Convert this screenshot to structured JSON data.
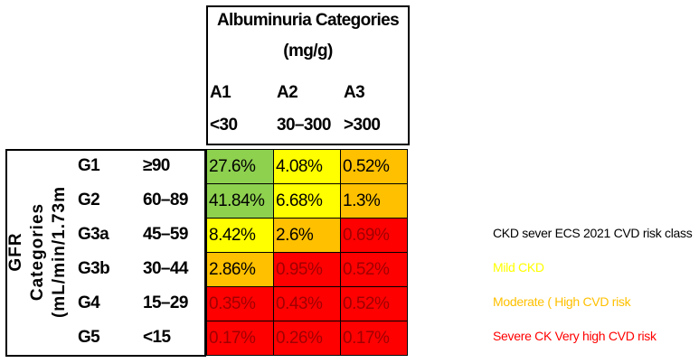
{
  "header": {
    "title": "Albuminuria Categories",
    "unit": "(mg/g)",
    "columns": [
      {
        "code": "A1",
        "range": "<30"
      },
      {
        "code": "A2",
        "range": "30–300"
      },
      {
        "code": "A3",
        "range": ">300"
      }
    ]
  },
  "row_header": {
    "lines": [
      "GFR",
      "Categories",
      "(mL/min/1.73m"
    ]
  },
  "rows": [
    {
      "code": "G1",
      "range": "≥90",
      "cells": [
        {
          "text": "27.6%",
          "color": "#8ed14f"
        },
        {
          "text": "4.08%",
          "color": "#ffff00"
        },
        {
          "text": "0.52%",
          "color": "#ffc000"
        }
      ]
    },
    {
      "code": "G2",
      "range": "60–89",
      "cells": [
        {
          "text": "41.84%",
          "color": "#8ed14f"
        },
        {
          "text": "6.68%",
          "color": "#ffff00"
        },
        {
          "text": "1.3%",
          "color": "#ffc000"
        }
      ]
    },
    {
      "code": "G3a",
      "range": "45–59",
      "cells": [
        {
          "text": "8.42%",
          "color": "#ffff00"
        },
        {
          "text": "2.6%",
          "color": "#ffc000"
        },
        {
          "text": "0.69%",
          "color": "#ff0000"
        }
      ]
    },
    {
      "code": "G3b",
      "range": "30–44",
      "cells": [
        {
          "text": "2.86%",
          "color": "#ffc000"
        },
        {
          "text": "0.95%",
          "color": "#ff0000"
        },
        {
          "text": "0.52%",
          "color": "#ff0000"
        }
      ]
    },
    {
      "code": "G4",
      "range": "15–29",
      "cells": [
        {
          "text": "0.35%",
          "color": "#ff0000"
        },
        {
          "text": "0.43%",
          "color": "#ff0000"
        },
        {
          "text": "0.52%",
          "color": "#ff0000"
        }
      ]
    },
    {
      "code": "G5",
      "range": "<15",
      "cells": [
        {
          "text": "0.17%",
          "color": "#ff0000"
        },
        {
          "text": "0.26%",
          "color": "#ff0000"
        },
        {
          "text": "0.17%",
          "color": "#ff0000"
        }
      ]
    }
  ],
  "legend": {
    "title": "CKD sever ECS 2021 CVD risk class",
    "items": [
      {
        "label": "Mild CKD",
        "color": "#ffff00"
      },
      {
        "label": "Moderate ( High CVD risk",
        "color": "#ffc000"
      },
      {
        "label": "Severe CK Very high CVD risk",
        "color": "#ff0000"
      }
    ]
  }
}
